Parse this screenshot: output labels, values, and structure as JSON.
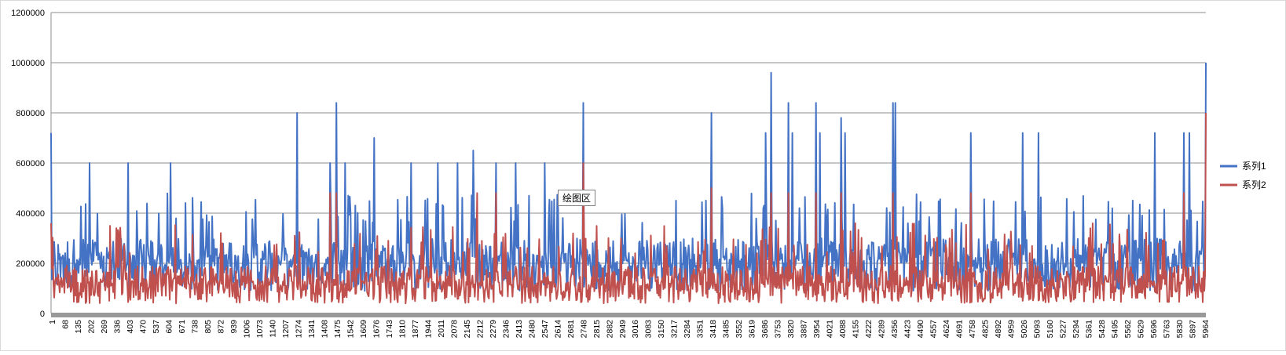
{
  "chart_data": {
    "type": "line",
    "title": "",
    "xlabel": "",
    "ylabel": "",
    "ylim": [
      0,
      1200000
    ],
    "yticks": [
      0,
      200000,
      400000,
      600000,
      800000,
      1000000,
      1200000
    ],
    "x_tick_labels": [
      "1",
      "68",
      "135",
      "202",
      "269",
      "336",
      "403",
      "470",
      "537",
      "604",
      "671",
      "738",
      "805",
      "872",
      "939",
      "1006",
      "1073",
      "1140",
      "1207",
      "1274",
      "1341",
      "1408",
      "1475",
      "1542",
      "1609",
      "1676",
      "1743",
      "1810",
      "1877",
      "1944",
      "2011",
      "2078",
      "2145",
      "2212",
      "2279",
      "2346",
      "2413",
      "2480",
      "2547",
      "2614",
      "2681",
      "2748",
      "2815",
      "2882",
      "2949",
      "3016",
      "3083",
      "3150",
      "3217",
      "3284",
      "3351",
      "3418",
      "3485",
      "3552",
      "3619",
      "3686",
      "3753",
      "3820",
      "3887",
      "3954",
      "4021",
      "4088",
      "4155",
      "4222",
      "4289",
      "4356",
      "4423",
      "4490",
      "4557",
      "4624",
      "4691",
      "4758",
      "4825",
      "4892",
      "4959",
      "5026",
      "5093",
      "5160",
      "5227",
      "5294",
      "5361",
      "5428",
      "5495",
      "5562",
      "5629",
      "5696",
      "5763",
      "5830",
      "5897",
      "5964"
    ],
    "xlim": [
      1,
      5964
    ],
    "grid": true,
    "legend_position": "right",
    "series": [
      {
        "name": "系列1",
        "color": "#4472C4",
        "baseline": 240000,
        "spikes": [
          [
            1,
            720000
          ],
          [
            200,
            600000
          ],
          [
            400,
            600000
          ],
          [
            620,
            600000
          ],
          [
            1270,
            800000
          ],
          [
            1440,
            600000
          ],
          [
            1475,
            840000
          ],
          [
            1520,
            600000
          ],
          [
            1670,
            700000
          ],
          [
            1860,
            600000
          ],
          [
            2000,
            600000
          ],
          [
            2100,
            600000
          ],
          [
            2180,
            650000
          ],
          [
            2300,
            600000
          ],
          [
            2400,
            600000
          ],
          [
            2550,
            600000
          ],
          [
            2750,
            840000
          ],
          [
            3410,
            800000
          ],
          [
            3690,
            720000
          ],
          [
            3720,
            960000
          ],
          [
            3810,
            840000
          ],
          [
            3830,
            720000
          ],
          [
            3950,
            840000
          ],
          [
            3970,
            720000
          ],
          [
            4080,
            780000
          ],
          [
            4100,
            720000
          ],
          [
            4350,
            840000
          ],
          [
            4360,
            840000
          ],
          [
            4750,
            720000
          ],
          [
            5020,
            720000
          ],
          [
            5100,
            720000
          ],
          [
            5700,
            720000
          ],
          [
            5850,
            720000
          ],
          [
            5880,
            720000
          ],
          [
            5964,
            1000000
          ]
        ]
      },
      {
        "name": "系列2",
        "color": "#C0504D",
        "baseline": 120000,
        "spikes": [
          [
            1,
            360000
          ],
          [
            1440,
            480000
          ],
          [
            1475,
            480000
          ],
          [
            2200,
            480000
          ],
          [
            2300,
            480000
          ],
          [
            2750,
            600000
          ],
          [
            3410,
            500000
          ],
          [
            3720,
            480000
          ],
          [
            3810,
            480000
          ],
          [
            3950,
            480000
          ],
          [
            4080,
            480000
          ],
          [
            4350,
            480000
          ],
          [
            4750,
            480000
          ],
          [
            5850,
            480000
          ],
          [
            5964,
            800000
          ]
        ]
      }
    ]
  },
  "tooltip": {
    "label": "绘图区"
  }
}
